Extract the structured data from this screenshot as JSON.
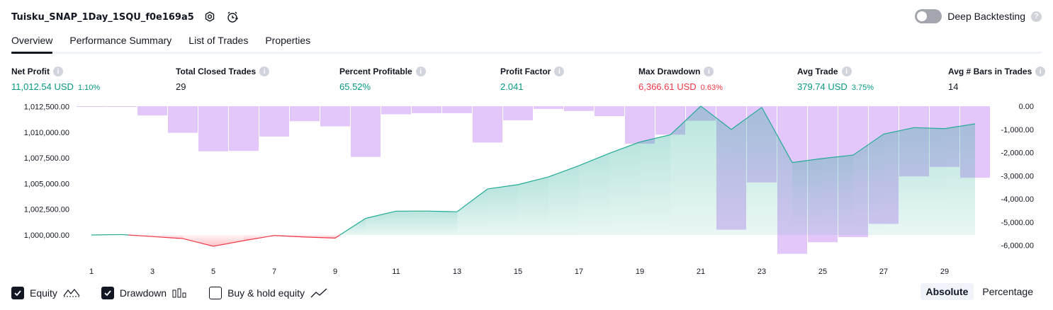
{
  "header": {
    "title": "Tuisku_SNAP_1Day_1SQU_f0e169a5",
    "deep_backtesting_label": "Deep Backtesting",
    "deep_backtesting_enabled": false,
    "help_glyph": "?"
  },
  "tabs": [
    {
      "label": "Overview",
      "active": true
    },
    {
      "label": "Performance Summary",
      "active": false
    },
    {
      "label": "List of Trades",
      "active": false
    },
    {
      "label": "Properties",
      "active": false
    }
  ],
  "stats": {
    "info_glyph": "i",
    "net_profit": {
      "label": "Net Profit",
      "value": "11,012.54 USD",
      "pct": "1.10%"
    },
    "total_closed_trades": {
      "label": "Total Closed Trades",
      "value": "29"
    },
    "percent_profitable": {
      "label": "Percent Profitable",
      "value": "65.52%"
    },
    "profit_factor": {
      "label": "Profit Factor",
      "value": "2.041"
    },
    "max_drawdown": {
      "label": "Max Drawdown",
      "value": "6,366.61 USD",
      "pct": "0.63%"
    },
    "avg_trade": {
      "label": "Avg Trade",
      "value": "379.74 USD",
      "pct": "3.75%"
    },
    "avg_bars": {
      "label": "Avg # Bars in Trades",
      "value": "14"
    }
  },
  "colors": {
    "profit": "#089981",
    "loss": "#f23645",
    "drawdown_bar": "#e1c4fa",
    "equity_line_up": "#22ab94",
    "equity_line_down": "#f23645"
  },
  "chart_data": {
    "type": "area",
    "x_ticks": [
      "1",
      "3",
      "5",
      "7",
      "9",
      "11",
      "13",
      "15",
      "17",
      "19",
      "21",
      "23",
      "25",
      "27",
      "29"
    ],
    "equity": {
      "name": "Equity",
      "baseline": 1000000,
      "x": [
        1,
        2,
        3,
        4,
        5,
        6,
        7,
        8,
        9,
        10,
        11,
        12,
        13,
        14,
        15,
        16,
        17,
        18,
        19,
        20,
        21,
        22,
        23,
        24,
        25,
        26,
        27,
        28,
        29,
        30
      ],
      "values": [
        1000000,
        1000040,
        999850,
        999650,
        998900,
        999450,
        999950,
        999800,
        999700,
        1001620,
        1002320,
        1002330,
        1002260,
        1004480,
        1004900,
        1005650,
        1006750,
        1007950,
        1009050,
        1009750,
        1012540,
        1010270,
        1012420,
        1007050,
        1007450,
        1007780,
        1009820,
        1010450,
        1010350,
        1010820
      ],
      "y_ticks": [
        "1,012,500.00",
        "1,010,000.00",
        "1,007,500.00",
        "1,005,000.00",
        "1,002,500.00",
        "1,000,000.00"
      ],
      "y_tick_values": [
        1012500,
        1010000,
        1007500,
        1005000,
        1002500,
        1000000
      ],
      "ylim": [
        998000,
        1013000
      ]
    },
    "drawdown": {
      "name": "Drawdown",
      "x": [
        1,
        2,
        3,
        4,
        5,
        6,
        7,
        8,
        9,
        10,
        11,
        12,
        13,
        14,
        15,
        16,
        17,
        18,
        19,
        20,
        21,
        22,
        23,
        24,
        25,
        26,
        27,
        28,
        29,
        30
      ],
      "values": [
        -20,
        -20,
        -400,
        -1150,
        -1950,
        -1930,
        -1310,
        -650,
        -870,
        -2190,
        -350,
        -300,
        -300,
        -1570,
        -610,
        -120,
        -210,
        -430,
        -1620,
        -1230,
        -630,
        -5330,
        -3290,
        -6370,
        -5870,
        -5650,
        -5080,
        -3030,
        -2620,
        -3090
      ],
      "y_ticks": [
        "0.00",
        "-1,000.00",
        "-2,000.00",
        "-3,000.00",
        "-4,000.00",
        "-5,000.00",
        "-6,000.00"
      ],
      "y_tick_values": [
        0,
        -1000,
        -2000,
        -3000,
        -4000,
        -5000,
        -6000
      ],
      "ylim": [
        -6400,
        0
      ]
    }
  },
  "legend": [
    {
      "label": "Equity",
      "checked": true
    },
    {
      "label": "Drawdown",
      "checked": true
    },
    {
      "label": "Buy & hold equity",
      "checked": false
    }
  ],
  "modes": [
    {
      "label": "Absolute",
      "active": true
    },
    {
      "label": "Percentage",
      "active": false
    }
  ]
}
